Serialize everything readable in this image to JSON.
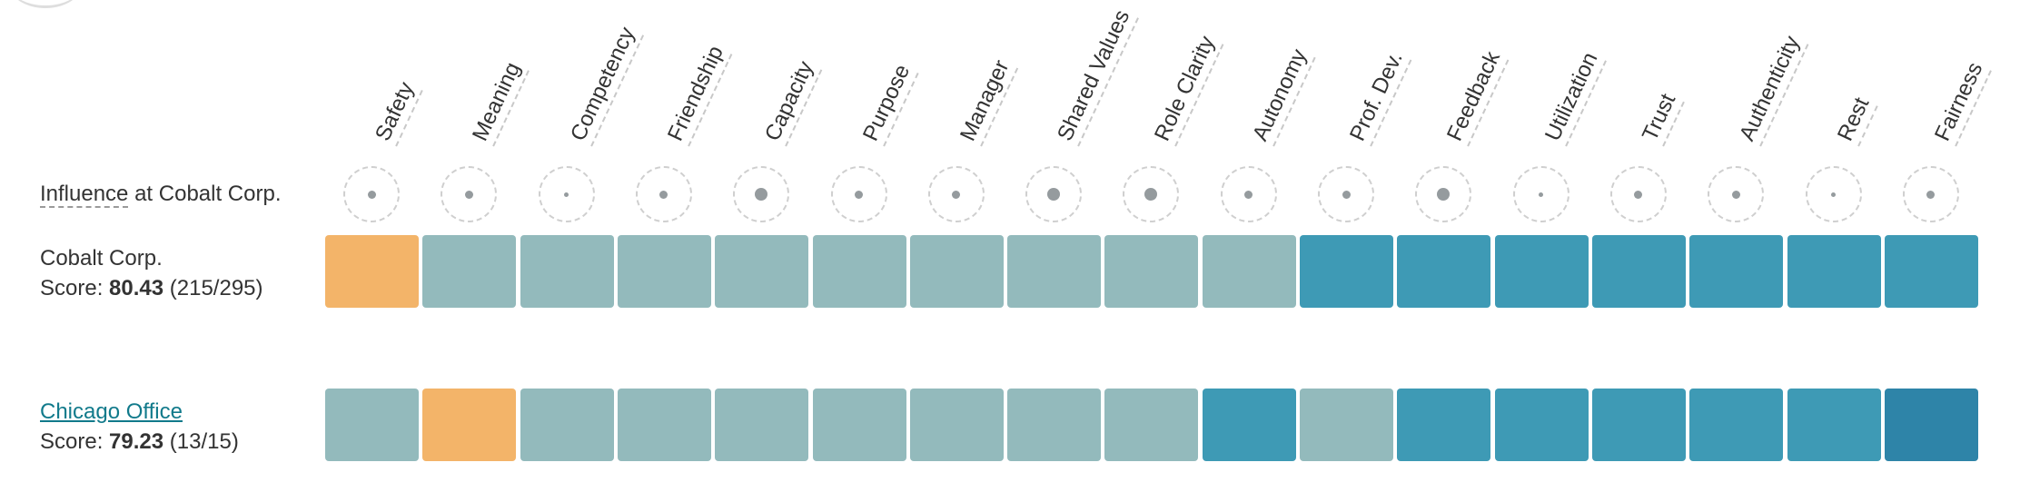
{
  "colors": {
    "alert": "#f3b469",
    "low": "#93babc",
    "high": "#3e9ab5",
    "top": "#2e84a8"
  },
  "headers": [
    "Safety",
    "Meaning",
    "Competency",
    "Friendship",
    "Capacity",
    "Purpose",
    "Manager",
    "Shared Values",
    "Role Clarity",
    "Autonomy",
    "Prof. Dev.",
    "Feedback",
    "Utilization",
    "Trust",
    "Authenticity",
    "Rest",
    "Fairness"
  ],
  "influence": {
    "label_link": "Influence",
    "label_rest": " at Cobalt Corp.",
    "dot_sizes": [
      "medium",
      "medium",
      "small",
      "medium",
      "large",
      "medium",
      "medium",
      "large",
      "large",
      "medium",
      "medium",
      "large",
      "small",
      "medium",
      "medium",
      "small",
      "medium"
    ]
  },
  "rows": [
    {
      "name": "Cobalt Corp.",
      "score_prefix": "Score: ",
      "score": "80.43",
      "score_detail": " (215/295)",
      "cells": [
        "alert",
        "low",
        "low",
        "low",
        "low",
        "low",
        "low",
        "low",
        "low",
        "low",
        "high",
        "high",
        "high",
        "high",
        "high",
        "high",
        "high"
      ]
    },
    {
      "name": "Chicago Office",
      "score_prefix": "Score: ",
      "score": "79.23",
      "score_detail": " (13/15)",
      "cells": [
        "low",
        "alert",
        "low",
        "low",
        "low",
        "low",
        "low",
        "low",
        "low",
        "high",
        "low",
        "high",
        "high",
        "high",
        "high",
        "high",
        "top"
      ]
    }
  ]
}
